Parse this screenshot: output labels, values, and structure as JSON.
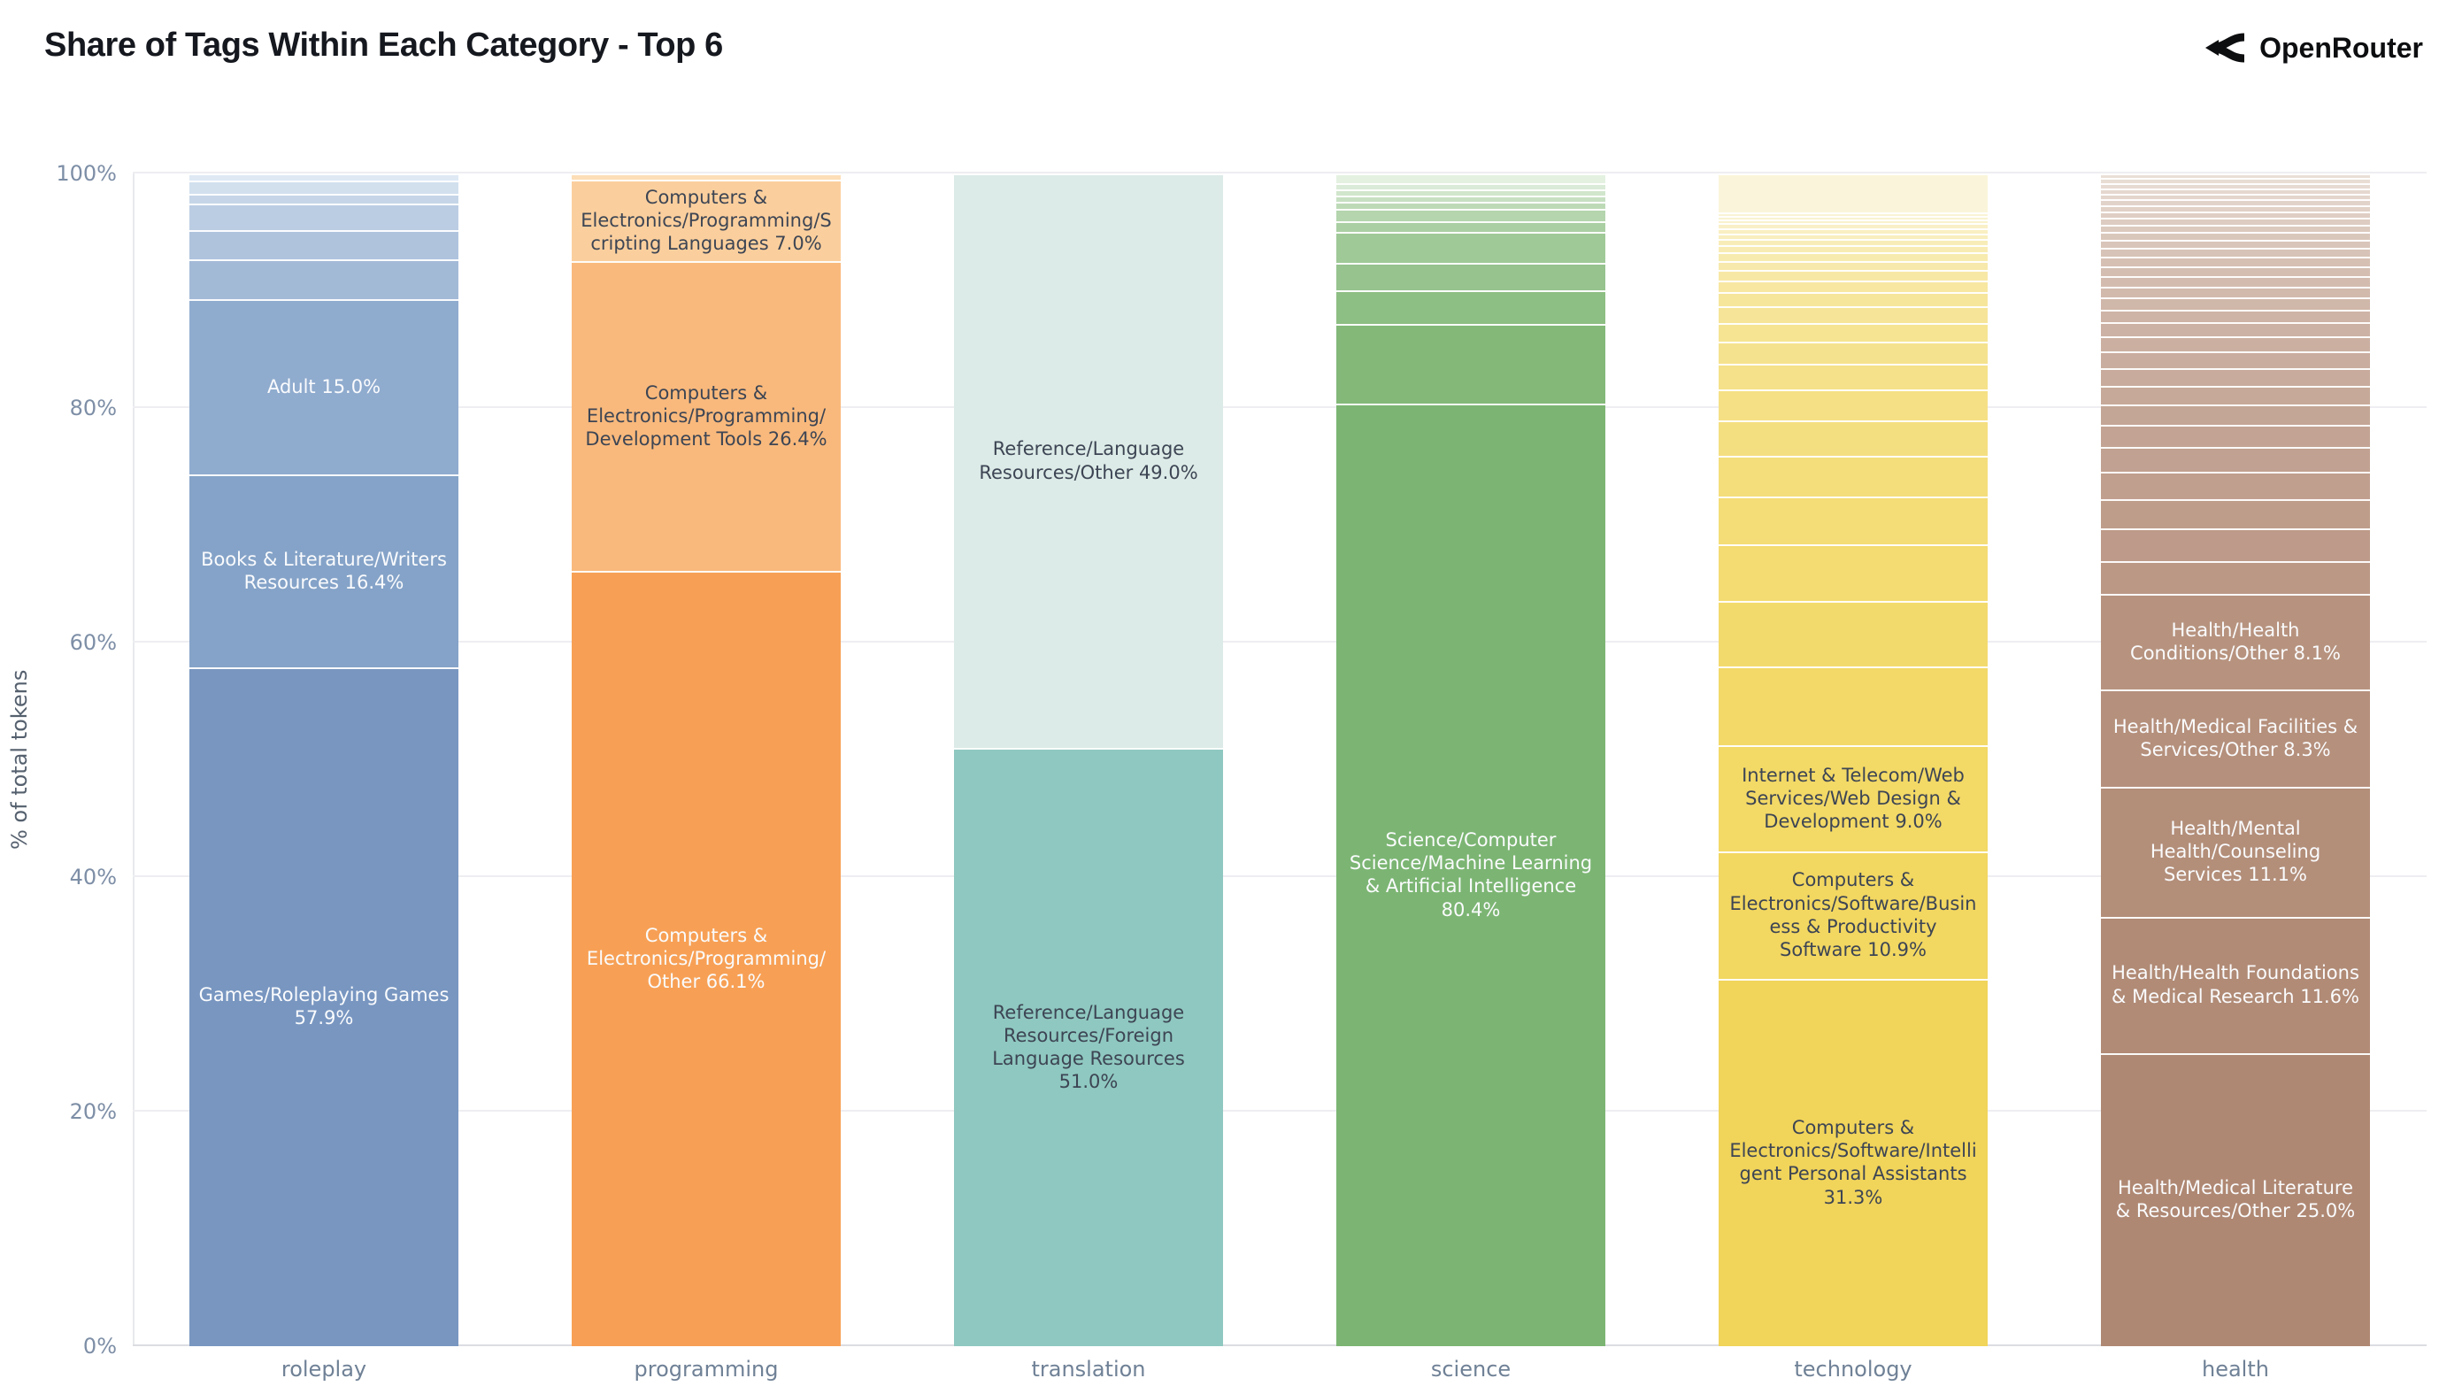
{
  "header": {
    "title": "Share of Tags Within Each Category - Top 6",
    "brand": "OpenRouter"
  },
  "colors": {
    "title_text": "#15181e",
    "brand_text": "#0c0e10",
    "tick_text": "#7d8ea6",
    "category_text": "#6f8196",
    "axis_title_text": "#55606e",
    "gridline": "#eeeef2",
    "axis_line": "#dcdde2",
    "label_dark": "#3d4554",
    "label_light": "#fafbfd"
  },
  "chart_data": {
    "type": "bar",
    "variant": "stacked-percent",
    "title": "Share of Tags Within Each Category - Top 6",
    "xlabel": "",
    "ylabel": "% of total tokens",
    "ylim": [
      0,
      100
    ],
    "grid": "horizontal",
    "legend": "none",
    "yticks": [
      "0%",
      "20%",
      "40%",
      "60%",
      "80%",
      "100%"
    ],
    "ytick_values": [
      0,
      20,
      40,
      60,
      80,
      100
    ],
    "categories": [
      "roleplay",
      "programming",
      "translation",
      "science",
      "technology",
      "health"
    ],
    "note": "Each bar stacks to 100%. top_fragments are small unlabeled tag shares rendered top-down above the labeled segments; labeled segments listed top-down.",
    "bars": [
      {
        "category": "roleplay",
        "top_fragments": {
          "from": "#dee9f4",
          "to": "#a3bad7",
          "values": [
            0.6,
            1.1,
            0.9,
            2.2,
            2.5,
            3.4
          ]
        },
        "segments": [
          {
            "label": "Adult 15.0%",
            "value": 15.0,
            "color": "#8fabce",
            "text": "light"
          },
          {
            "label": "Books & Literature/Writers Resources 16.4%",
            "value": 16.4,
            "color": "#85a3c8",
            "text": "light"
          },
          {
            "label": "Games/Roleplaying Games 57.9%",
            "value": 57.9,
            "color": "#7896c0",
            "text": "light"
          }
        ]
      },
      {
        "category": "programming",
        "top_fragments": {
          "from": "#fcdeb7",
          "to": "#fcdeb7",
          "values": [
            0.5
          ]
        },
        "segments": [
          {
            "label": "Computers & Electronics/Programming/Scripting Languages 7.0%",
            "value": 7.0,
            "color": "#fbcf9d",
            "text": "dark"
          },
          {
            "label": "Computers & Electronics/Programming/Development Tools 26.4%",
            "value": 26.4,
            "color": "#f9b97c",
            "text": "dark"
          },
          {
            "label": "Computers & Electronics/Programming/Other 66.1%",
            "value": 66.1,
            "color": "#f7a055",
            "text": "light"
          }
        ]
      },
      {
        "category": "translation",
        "top_fragments": {
          "from": "#dcebe7",
          "to": "#dcebe7",
          "values": []
        },
        "segments": [
          {
            "label": "Reference/Language Resources/Other 49.0%",
            "value": 49.0,
            "color": "#dcebe7",
            "text": "dark"
          },
          {
            "label": "Reference/Language Resources/Foreign Language Resources 51.0%",
            "value": 51.0,
            "color": "#8fc8c0",
            "text": "dark"
          }
        ]
      },
      {
        "category": "science",
        "top_fragments": {
          "from": "#e4f1e1",
          "to": "#83b879",
          "values": [
            0.8,
            0.55,
            0.55,
            0.55,
            0.55,
            1.1,
            0.9,
            2.6,
            2.4,
            2.8,
            6.8
          ]
        },
        "segments": [
          {
            "label": "Science/Computer Science/Machine Learning & Artificial Intelligence 80.4%",
            "value": 80.4,
            "color": "#7cb573",
            "text": "light"
          }
        ]
      },
      {
        "category": "technology",
        "top_fragments": {
          "from": "#faf5da",
          "to": "#f3d968",
          "values": [
            3.3,
            0.3,
            0.3,
            0.35,
            0.4,
            0.45,
            0.5,
            0.55,
            0.6,
            0.7,
            0.8,
            0.9,
            1.0,
            1.2,
            1.4,
            1.6,
            1.9,
            2.2,
            2.6,
            3.0,
            3.5,
            4.1,
            4.8,
            5.6,
            6.75
          ]
        },
        "segments": [
          {
            "label": "Internet & Telecom/Web Services/Web Design & Development 9.0%",
            "value": 9.0,
            "color": "#f3d966",
            "text": "dark"
          },
          {
            "label": "Computers & Electronics/Software/Business & Productivity Software 10.9%",
            "value": 10.9,
            "color": "#f2d761",
            "text": "dark"
          },
          {
            "label": "Computers & Electronics/Software/Intelligent Personal Assistants 31.3%",
            "value": 31.3,
            "color": "#f1d45a",
            "text": "dark"
          }
        ]
      },
      {
        "category": "health",
        "top_fragments": {
          "from": "#eadfd7",
          "to": "#bb9886",
          "values": [
            0.4,
            0.4,
            0.45,
            0.45,
            0.5,
            0.5,
            0.55,
            0.55,
            0.6,
            0.6,
            0.65,
            0.7,
            0.75,
            0.8,
            0.85,
            0.9,
            0.95,
            1.0,
            1.1,
            1.2,
            1.3,
            1.4,
            1.5,
            1.6,
            1.75,
            1.9,
            2.1,
            2.3,
            2.55,
            2.8,
            2.8
          ]
        },
        "segments": [
          {
            "label": "Health/Health Conditions/Other 8.1%",
            "value": 8.1,
            "color": "#b7937f",
            "text": "light"
          },
          {
            "label": "Health/Medical Facilities & Services/Other 8.3%",
            "value": 8.3,
            "color": "#b5907c",
            "text": "light"
          },
          {
            "label": "Health/Mental Health/Counseling Services 11.1%",
            "value": 11.1,
            "color": "#b38e79",
            "text": "light"
          },
          {
            "label": "Health/Health Foundations & Medical Research 11.6%",
            "value": 11.6,
            "color": "#b18b76",
            "text": "light"
          },
          {
            "label": "Health/Medical Literature & Resources/Other 25.0%",
            "value": 25.0,
            "color": "#af8873",
            "text": "light"
          }
        ]
      }
    ]
  }
}
